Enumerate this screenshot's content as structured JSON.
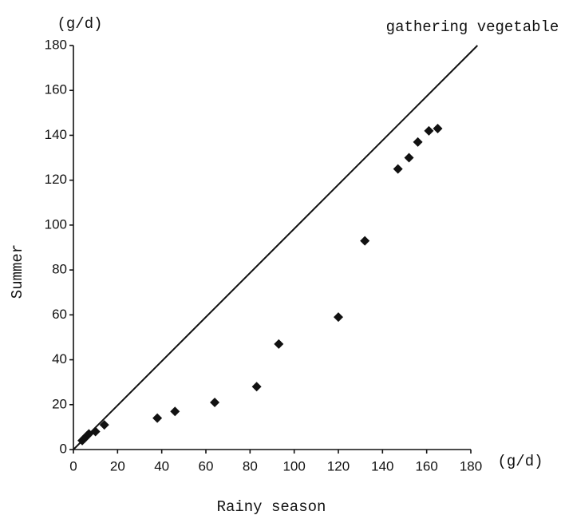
{
  "chart_data": {
    "type": "scatter",
    "title": "gathering vegetable",
    "x_label": "Rainy season",
    "y_label": "Summer",
    "x_unit": "(g/d)",
    "y_unit": "(g/d)",
    "color": "#111111",
    "x": [
      4,
      5,
      6,
      7,
      10,
      14,
      38,
      46,
      64,
      83,
      93,
      120,
      132,
      147,
      152,
      156,
      161,
      165
    ],
    "values": [
      4,
      5,
      6,
      7,
      8,
      11,
      14,
      17,
      21,
      28,
      47,
      59,
      93,
      125,
      130,
      137,
      142,
      143
    ],
    "reference_line": {
      "x": [
        0,
        183
      ],
      "y": [
        0,
        180
      ]
    },
    "xlim": [
      0,
      180
    ],
    "ylim": [
      0,
      180
    ],
    "xticks": [
      0,
      20,
      40,
      60,
      80,
      100,
      120,
      140,
      160,
      180
    ],
    "yticks": [
      0,
      20,
      40,
      60,
      80,
      100,
      120,
      140,
      160,
      180
    ]
  }
}
